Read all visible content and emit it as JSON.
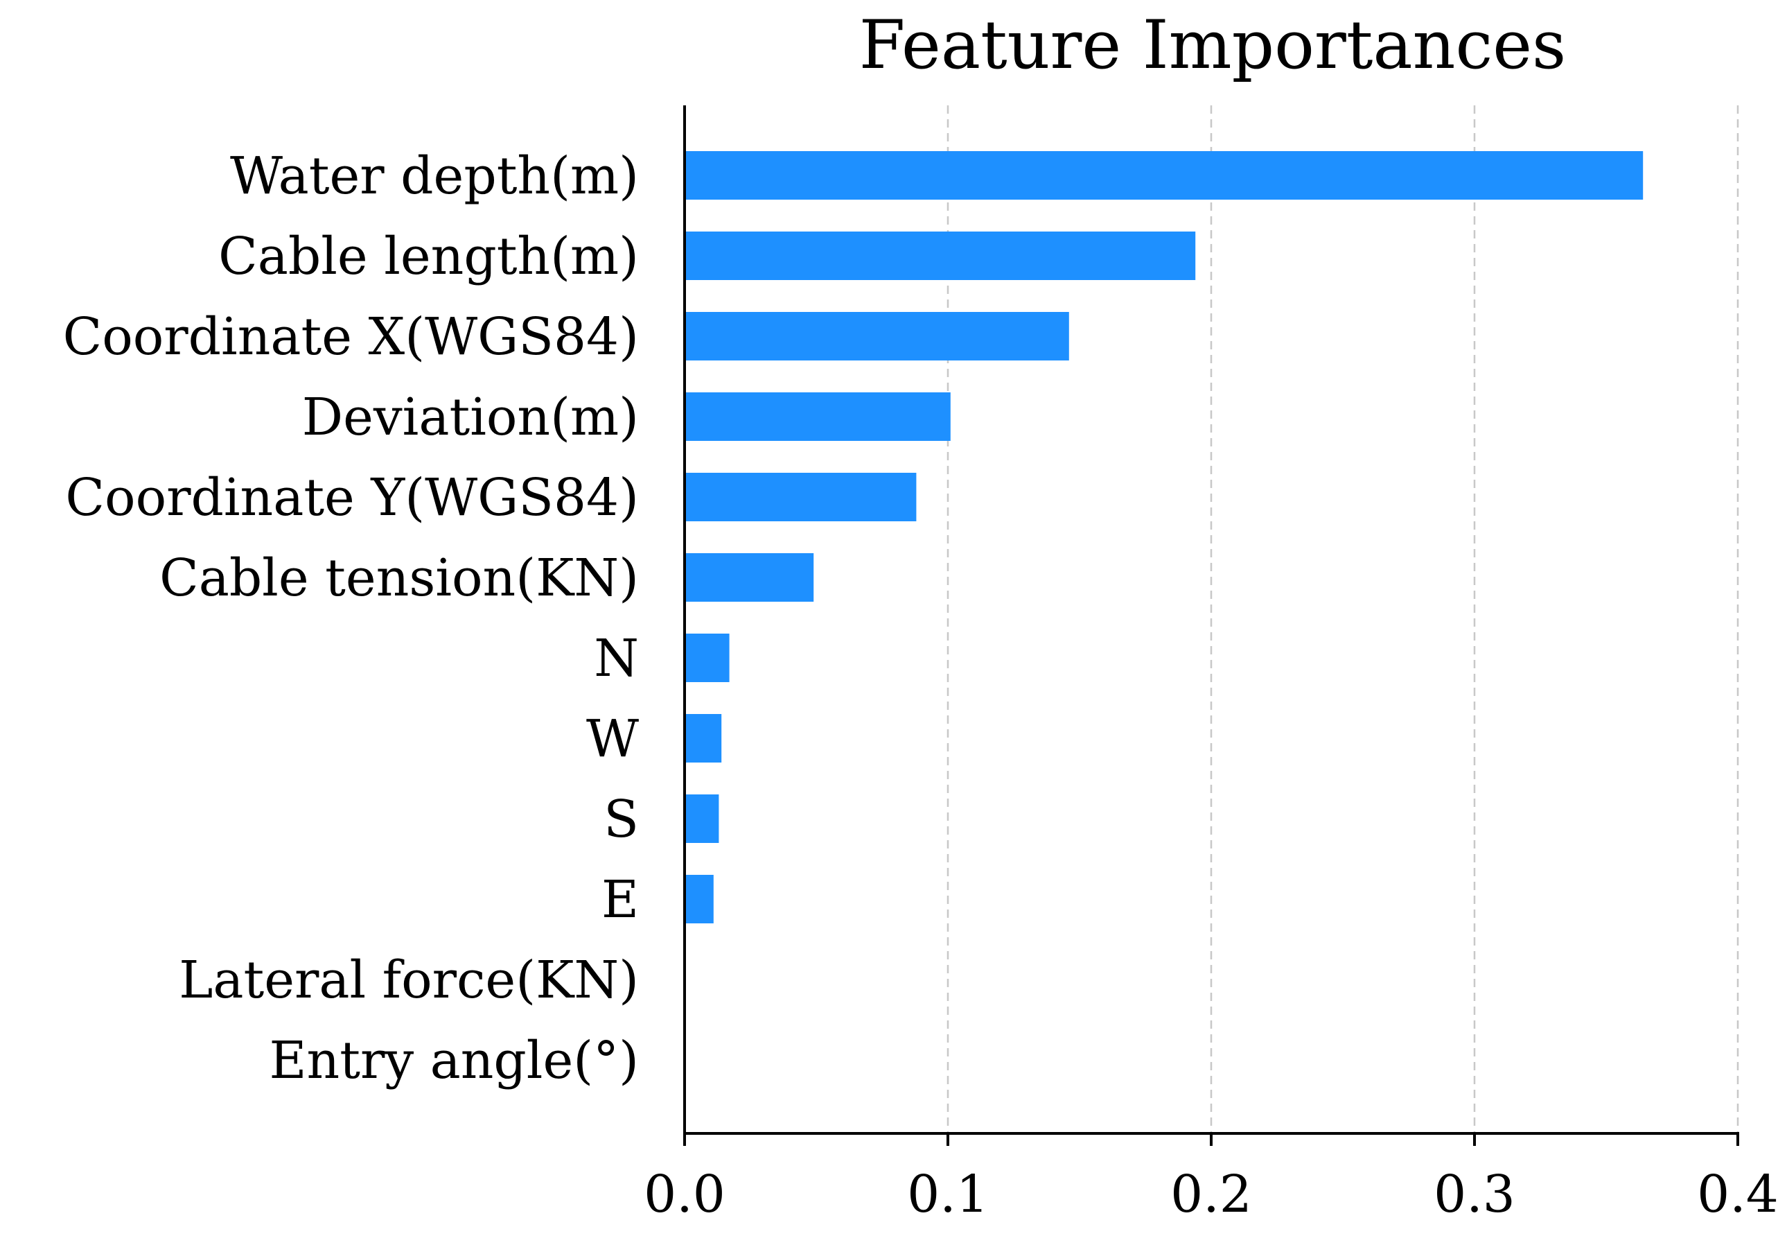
{
  "chart_data": {
    "type": "bar",
    "orientation": "horizontal",
    "title": "Feature Importances",
    "xlabel": "",
    "ylabel": "",
    "xlim": [
      0.0,
      0.4
    ],
    "grid": "x-dashed",
    "bar_color": "#1E90FF",
    "categories": [
      "Water depth(m)",
      "Cable length(m)",
      "Coordinate X(WGS84)",
      "Deviation(m)",
      "Coordinate Y(WGS84)",
      "Cable tension(KN)",
      "N",
      "W",
      "S",
      "E",
      "Lateral force(KN)",
      "Entry angle(°)"
    ],
    "values": [
      0.364,
      0.194,
      0.146,
      0.101,
      0.088,
      0.049,
      0.017,
      0.014,
      0.013,
      0.011,
      0.0,
      0.0
    ],
    "x_ticks": [
      "0.0",
      "0.1",
      "0.2",
      "0.3",
      "0.4"
    ],
    "x_tick_values": [
      0.0,
      0.1,
      0.2,
      0.3,
      0.4
    ]
  }
}
